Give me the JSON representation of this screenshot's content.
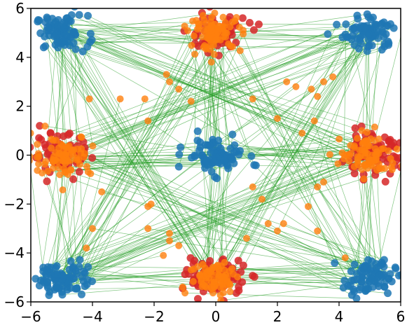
{
  "chart_data": {
    "type": "scatter",
    "title": "",
    "xlabel": "",
    "ylabel": "",
    "xlim": [
      -6,
      6
    ],
    "ylim": [
      -6,
      6
    ],
    "x_ticks": [
      "−6",
      "−4",
      "−2",
      "0",
      "2",
      "4",
      "6"
    ],
    "y_ticks": [
      "−6",
      "−4",
      "−2",
      "0",
      "2",
      "4",
      "6"
    ],
    "x_tick_values": [
      -6,
      -4,
      -2,
      0,
      2,
      4,
      6
    ],
    "y_tick_values": [
      -6,
      -4,
      -2,
      0,
      2,
      4,
      6
    ],
    "grid": false,
    "legend": "none",
    "colors": {
      "source": "#1f77b4",
      "target": "#d62728",
      "mapped": "#ff7f0e",
      "link": "#2ca02c"
    },
    "series": [
      {
        "role": "source",
        "clusters": [
          {
            "center": [
              -5,
              5
            ],
            "spread": [
              0.7,
              0.6
            ],
            "count": 80
          },
          {
            "center": [
              5,
              5
            ],
            "spread": [
              0.7,
              0.6
            ],
            "count": 80
          },
          {
            "center": [
              -5,
              -5
            ],
            "spread": [
              0.7,
              0.6
            ],
            "count": 80
          },
          {
            "center": [
              5,
              -5
            ],
            "spread": [
              0.7,
              0.6
            ],
            "count": 80
          },
          {
            "center": [
              0,
              0
            ],
            "spread": [
              0.8,
              0.6
            ],
            "count": 80
          }
        ]
      },
      {
        "role": "target",
        "clusters": [
          {
            "center": [
              0,
              5
            ],
            "spread": [
              0.8,
              0.6
            ],
            "count": 80
          },
          {
            "center": [
              0,
              -5
            ],
            "spread": [
              0.8,
              0.6
            ],
            "count": 80
          },
          {
            "center": [
              -5,
              0
            ],
            "spread": [
              0.8,
              0.7
            ],
            "count": 80
          },
          {
            "center": [
              5,
              0
            ],
            "spread": [
              0.8,
              0.7
            ],
            "count": 80
          }
        ]
      },
      {
        "role": "mapped",
        "clusters": [
          {
            "center": [
              0,
              5
            ],
            "spread": [
              0.7,
              0.6
            ],
            "count": 80
          },
          {
            "center": [
              0,
              -5
            ],
            "spread": [
              0.7,
              0.6
            ],
            "count": 80
          },
          {
            "center": [
              -5,
              0
            ],
            "spread": [
              0.8,
              0.7
            ],
            "count": 80
          },
          {
            "center": [
              5,
              0
            ],
            "spread": [
              0.8,
              0.7
            ],
            "count": 80
          }
        ],
        "outliers": [
          [
            -3.1,
            2.3
          ],
          [
            -2.3,
            2.3
          ],
          [
            -1.5,
            3.0
          ],
          [
            -1.6,
            3.3
          ],
          [
            -1.2,
            2.7
          ],
          [
            -0.8,
            2.2
          ],
          [
            -2.2,
            1.4
          ],
          [
            1.2,
            2.3
          ],
          [
            2.0,
            1.5
          ],
          [
            2.3,
            3.0
          ],
          [
            2.6,
            2.8
          ],
          [
            3.1,
            2.7
          ],
          [
            3.3,
            2.4
          ],
          [
            3.5,
            3.0
          ],
          [
            3.8,
            3.2
          ],
          [
            2.8,
            0.9
          ],
          [
            3.2,
            1.4
          ],
          [
            -4.1,
            2.3
          ],
          [
            -2.1,
            -2.0
          ],
          [
            -2.2,
            -2.1
          ],
          [
            -2.2,
            -3.0
          ],
          [
            -1.7,
            -4.1
          ],
          [
            -1.5,
            -3.2
          ],
          [
            -1.5,
            -3.5
          ],
          [
            -1.2,
            -3.7
          ],
          [
            -3.7,
            -1.5
          ],
          [
            -4.0,
            -3.0
          ],
          [
            -4.2,
            -3.8
          ],
          [
            1.0,
            -3.4
          ],
          [
            1.2,
            -1.3
          ],
          [
            1.5,
            -1.8
          ],
          [
            1.7,
            -2.8
          ],
          [
            2.2,
            -2.8
          ],
          [
            2.0,
            -3.1
          ],
          [
            3.3,
            -3.1
          ],
          [
            4.2,
            -4.2
          ],
          [
            3.0,
            -2.1
          ],
          [
            3.5,
            -1.1
          ],
          [
            3.3,
            -1.3
          ]
        ]
      }
    ]
  }
}
